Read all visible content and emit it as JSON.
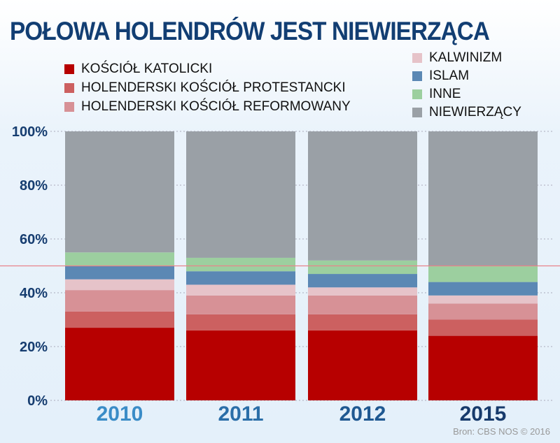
{
  "title": "POŁOWA HOLENDRÓW JEST NIEWIERZĄCA",
  "source": "Bron: CBS   NOS © 2016",
  "chart_data": {
    "type": "bar",
    "stacked": true,
    "title": "POŁOWA HOLENDRÓW JEST NIEWIERZĄCA",
    "categories": [
      "2010",
      "2011",
      "2012",
      "2015"
    ],
    "category_colors": [
      "#3a8cc7",
      "#2a6ea8",
      "#1f5891",
      "#173a6b"
    ],
    "ylim": [
      0,
      100
    ],
    "yticks": [
      "0%",
      "20%",
      "40%",
      "60%",
      "80%",
      "100%"
    ],
    "reference_line": {
      "value": 50,
      "color": "#e8828a"
    },
    "legend_placement": "top",
    "series": [
      {
        "name": "KOŚCIÓŁ KATOLICKI",
        "color": "#b70000",
        "values": [
          27,
          26,
          26,
          24
        ]
      },
      {
        "name": "HOLENDERSKI KOŚCIÓŁ PROTESTANCKI",
        "color": "#cc6060",
        "values": [
          6,
          6,
          6,
          6
        ]
      },
      {
        "name": "HOLENDERSKI KOŚCIÓŁ REFORMOWANY",
        "color": "#d79196",
        "values": [
          8,
          7,
          7,
          6
        ]
      },
      {
        "name": "KALWINIZM",
        "color": "#e6c3c9",
        "values": [
          4,
          4,
          3,
          3
        ]
      },
      {
        "name": "ISLAM",
        "color": "#5b88b4",
        "values": [
          5,
          5,
          5,
          5
        ]
      },
      {
        "name": "INNE",
        "color": "#9ccf9f",
        "values": [
          5,
          5,
          5,
          6
        ]
      },
      {
        "name": "NIEWIERZĄCY",
        "color": "#9aa0a6",
        "values": [
          45,
          47,
          48,
          50
        ]
      }
    ]
  }
}
